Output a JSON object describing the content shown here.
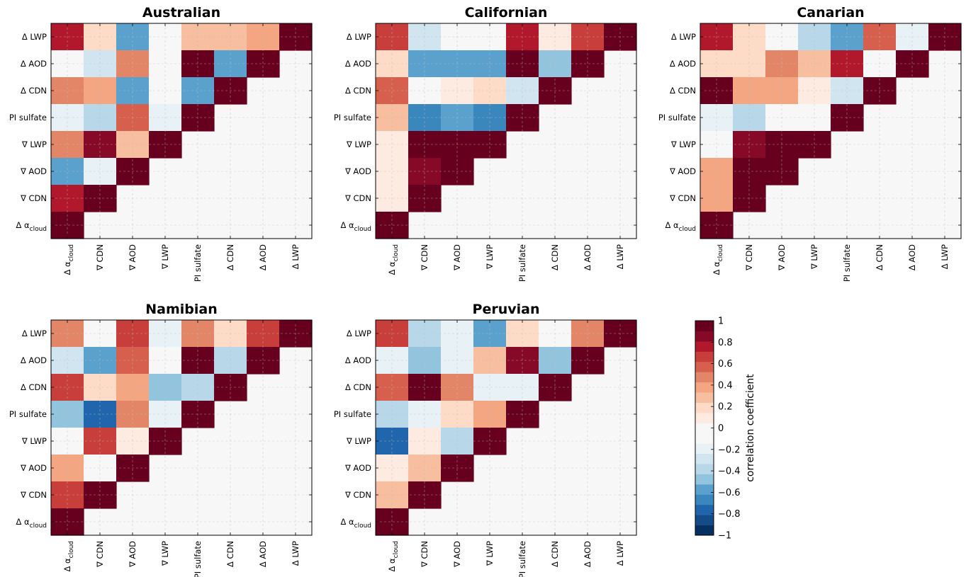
{
  "chart_data": {
    "type": "heatmap",
    "x_labels": [
      "Δ α_cloud",
      "∇ CDN",
      "∇ AOD",
      "∇ LWP",
      "PI sulfate",
      "Δ CDN",
      "Δ AOD",
      "Δ LWP"
    ],
    "y_labels": [
      "Δ LWP",
      "Δ AOD",
      "Δ CDN",
      "PI sulfate",
      "∇ LWP",
      "∇ AOD",
      "∇ CDN",
      "Δ α_cloud"
    ],
    "value_range": [
      -1,
      1
    ],
    "grid": true,
    "colormap": "RdBu_r",
    "colorbar": {
      "label": "correlation coefficient",
      "ticks": [
        "1",
        "0.8",
        "0.6",
        "0.4",
        "0.2",
        "0",
        "−0.2",
        "−0.4",
        "−0.6",
        "−0.8",
        "−1"
      ],
      "colors": [
        "#053061",
        "#134c87",
        "#2166ac",
        "#3a87bd",
        "#5aa2cd",
        "#93c4de",
        "#b8d8e9",
        "#d1e5f0",
        "#e8f1f5",
        "#f7f7f7",
        "#f7f7f7",
        "#fdeae0",
        "#fddbc7",
        "#f7be9f",
        "#f4a582",
        "#e38667",
        "#d6604d",
        "#c83e3a",
        "#b2182b",
        "#860a27",
        "#67001f"
      ]
    },
    "panels": [
      {
        "title": "Australian",
        "values": [
          [
            0.75,
            0.15,
            -0.55,
            -0.05,
            0.3,
            0.3,
            0.4,
            1
          ],
          [
            -0.05,
            -0.25,
            0.5,
            -0.05,
            1,
            -0.6,
            1,
            null
          ],
          [
            0.5,
            0.35,
            -0.55,
            0.0,
            -0.6,
            1,
            null,
            null
          ],
          [
            -0.15,
            -0.35,
            0.6,
            -0.15,
            1,
            null,
            null,
            null
          ],
          [
            0.5,
            0.85,
            0.25,
            1,
            null,
            null,
            null,
            null
          ],
          [
            -0.6,
            -0.15,
            1,
            null,
            null,
            null,
            null,
            null
          ],
          [
            0.75,
            1,
            null,
            null,
            null,
            null,
            null,
            null
          ],
          [
            1,
            null,
            null,
            null,
            null,
            null,
            null,
            null
          ]
        ]
      },
      {
        "title": "Californian",
        "values": [
          [
            0.7,
            -0.25,
            0.0,
            -0.05,
            0.8,
            0.05,
            0.7,
            1
          ],
          [
            0.2,
            -0.55,
            -0.55,
            -0.55,
            1,
            -0.45,
            1,
            null
          ],
          [
            0.55,
            0.0,
            0.08,
            0.15,
            -0.25,
            1,
            null,
            null
          ],
          [
            0.25,
            -0.65,
            -0.55,
            -0.65,
            1,
            null,
            null,
            null
          ],
          [
            0.12,
            1,
            1,
            1,
            null,
            null,
            null,
            null
          ],
          [
            0.05,
            0.85,
            1,
            null,
            null,
            null,
            null,
            null
          ],
          [
            0.07,
            1,
            null,
            null,
            null,
            null,
            null,
            null
          ],
          [
            1,
            null,
            null,
            null,
            null,
            null,
            null,
            null
          ]
        ]
      },
      {
        "title": "Canarian",
        "values": [
          [
            0.75,
            0.15,
            -0.05,
            -0.35,
            -0.55,
            0.55,
            -0.15,
            1
          ],
          [
            0.15,
            0.15,
            0.5,
            0.25,
            0.8,
            0.0,
            1,
            null
          ],
          [
            1,
            0.35,
            0.35,
            0.05,
            -0.25,
            1,
            null,
            null
          ],
          [
            -0.15,
            -0.35,
            0.02,
            -0.05,
            1,
            null,
            null,
            null
          ],
          [
            0.0,
            0.85,
            1,
            1,
            null,
            null,
            null,
            null
          ],
          [
            0.35,
            1,
            1,
            null,
            null,
            null,
            null,
            null
          ],
          [
            0.35,
            1,
            null,
            null,
            null,
            null,
            null,
            null
          ],
          [
            1,
            null,
            null,
            null,
            null,
            null,
            null,
            null
          ]
        ]
      },
      {
        "title": "Namibian",
        "values": [
          [
            0.5,
            -0.05,
            0.7,
            -0.15,
            0.5,
            0.2,
            0.7,
            1
          ],
          [
            -0.25,
            -0.55,
            0.6,
            0.0,
            1,
            -0.35,
            1,
            null
          ],
          [
            0.7,
            0.15,
            0.4,
            -0.45,
            -0.35,
            1,
            null,
            null
          ],
          [
            -0.45,
            -0.75,
            0.5,
            -0.15,
            1,
            null,
            null,
            null
          ],
          [
            0.0,
            0.7,
            0.05,
            1,
            null,
            null,
            null,
            null
          ],
          [
            0.35,
            -0.05,
            1,
            null,
            null,
            null,
            null,
            null
          ],
          [
            0.7,
            1,
            null,
            null,
            null,
            null,
            null,
            null
          ],
          [
            1,
            null,
            null,
            null,
            null,
            null,
            null,
            null
          ]
        ]
      },
      {
        "title": "Peruvian",
        "values": [
          [
            0.7,
            -0.35,
            -0.15,
            -0.6,
            0.2,
            -0.05,
            0.5,
            1
          ],
          [
            -0.15,
            -0.45,
            -0.2,
            0.25,
            0.85,
            -0.5,
            1,
            null
          ],
          [
            0.55,
            1,
            0.5,
            -0.15,
            -0.15,
            1,
            null,
            null
          ],
          [
            -0.35,
            -0.15,
            0.15,
            0.35,
            1,
            null,
            null,
            null
          ],
          [
            -0.75,
            0.05,
            -0.35,
            1,
            null,
            null,
            null,
            null
          ],
          [
            0.05,
            0.25,
            1,
            null,
            null,
            null,
            null,
            null
          ],
          [
            0.25,
            1,
            null,
            null,
            null,
            null,
            null,
            null
          ],
          [
            1,
            null,
            null,
            null,
            null,
            null,
            null,
            null
          ]
        ]
      }
    ]
  }
}
